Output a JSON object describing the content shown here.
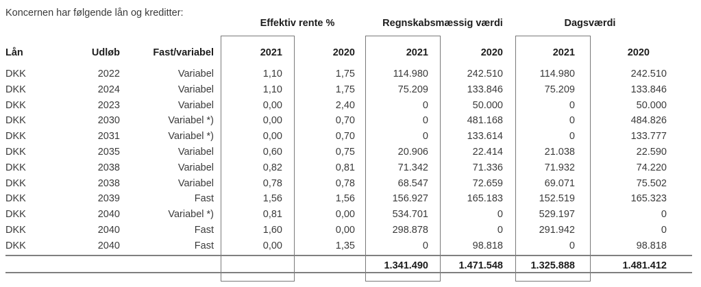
{
  "title": "Koncernen har følgende lån og kreditter:",
  "table": {
    "group_headers": [
      {
        "label": "Effektiv rente %"
      },
      {
        "label": "Regnskabsmæssig værdi"
      },
      {
        "label": "Dagsværdi"
      }
    ],
    "columns": [
      "Lån",
      "Udløb",
      "Fast/variabel",
      "2021",
      "2020",
      "2021",
      "2020",
      "2021",
      "2020"
    ],
    "rows": [
      [
        "DKK",
        "2022",
        "Variabel",
        "1,10",
        "1,75",
        "114.980",
        "242.510",
        "114.980",
        "242.510"
      ],
      [
        "DKK",
        "2024",
        "Variabel",
        "1,10",
        "1,75",
        "75.209",
        "133.846",
        "75.209",
        "133.846"
      ],
      [
        "DKK",
        "2023",
        "Variabel",
        "0,00",
        "2,40",
        "0",
        "50.000",
        "0",
        "50.000"
      ],
      [
        "DKK",
        "2030",
        "Variabel *)",
        "0,00",
        "0,70",
        "0",
        "481.168",
        "0",
        "484.826"
      ],
      [
        "DKK",
        "2031",
        "Variabel *)",
        "0,00",
        "0,70",
        "0",
        "133.614",
        "0",
        "133.777"
      ],
      [
        "DKK",
        "2035",
        "Variabel",
        "0,60",
        "0,75",
        "20.906",
        "22.414",
        "21.038",
        "22.590"
      ],
      [
        "DKK",
        "2038",
        "Variabel",
        "0,82",
        "0,81",
        "71.342",
        "71.336",
        "71.932",
        "74.220"
      ],
      [
        "DKK",
        "2038",
        "Variabel",
        "0,78",
        "0,78",
        "68.547",
        "72.659",
        "69.071",
        "75.502"
      ],
      [
        "DKK",
        "2039",
        "Fast",
        "1,56",
        "1,56",
        "156.927",
        "165.183",
        "152.519",
        "165.323"
      ],
      [
        "DKK",
        "2040",
        "Variabel *)",
        "0,81",
        "0,00",
        "534.701",
        "0",
        "529.197",
        "0"
      ],
      [
        "DKK",
        "2040",
        "Fast",
        "1,60",
        "0,00",
        "298.878",
        "0",
        "291.942",
        "0"
      ],
      [
        "DKK",
        "2040",
        "Fast",
        "0,00",
        "1,35",
        "0",
        "98.818",
        "0",
        "98.818"
      ]
    ],
    "totals": {
      "rv2021": "1.341.490",
      "rv2020": "1.471.548",
      "dv2021": "1.325.888",
      "dv2020": "1.481.412"
    }
  },
  "colors": {
    "text_body": "#3a3a3a",
    "text_bold": "#1c1c1c",
    "line": "#7f7f7f",
    "box_border": "#787878",
    "background": "#ffffff"
  }
}
